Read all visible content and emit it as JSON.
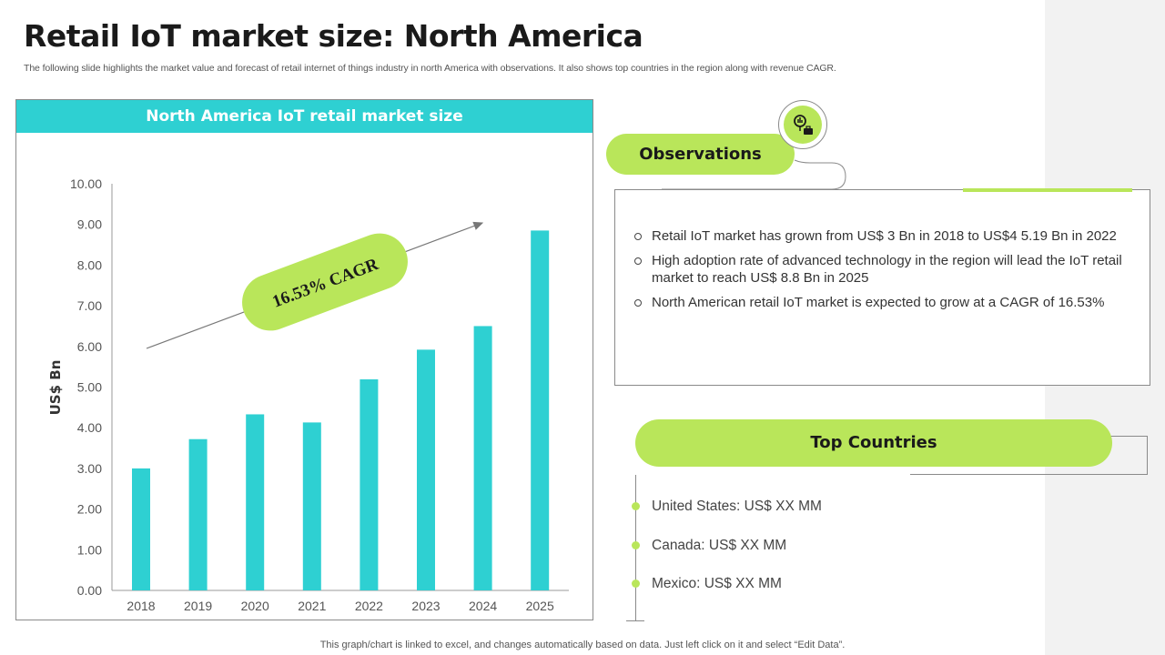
{
  "title": "Retail IoT market size: North America",
  "subtitle": "The following slide highlights the market value and forecast of retail internet of things industry in north America with observations. It also shows top countries in the region along with revenue CAGR.",
  "chart_header": "North America IoT retail market size",
  "chart_data": {
    "type": "bar",
    "categories": [
      "2018",
      "2019",
      "2020",
      "2021",
      "2022",
      "2023",
      "2024",
      "2025"
    ],
    "values": [
      3.0,
      3.72,
      4.33,
      4.13,
      5.19,
      5.92,
      6.5,
      8.85
    ],
    "ylabel": "US$ Bn",
    "ylim": [
      0,
      10
    ],
    "yticks": [
      "0.00",
      "1.00",
      "2.00",
      "3.00",
      "4.00",
      "5.00",
      "6.00",
      "7.00",
      "8.00",
      "9.00",
      "10.00"
    ],
    "annotation": "16.53% CAGR",
    "grid": false,
    "bar_color": "#2ed0d2"
  },
  "observations": {
    "label": "Observations",
    "items": [
      "Retail IoT market has grown from US$ 3 Bn in 2018 to US$4 5.19 Bn in 2022",
      "High adoption rate of advanced technology in the region will lead the IoT retail market to reach US$ 8.8 Bn in 2025",
      "North American retail IoT market is expected to grow at a CAGR of 16.53%"
    ]
  },
  "top_countries": {
    "label": "Top Countries",
    "items": [
      "United States: US$ XX MM",
      "Canada: US$ XX MM",
      "Mexico: US$ XX MM"
    ]
  },
  "footnote": "This graph/chart is linked to excel, and changes automatically based on data. Just left click on it and select “Edit Data”.",
  "colors": {
    "accent_green": "#b9e65a",
    "accent_teal": "#2ed0d2"
  },
  "icons": {
    "observations": "analytics-icon"
  }
}
